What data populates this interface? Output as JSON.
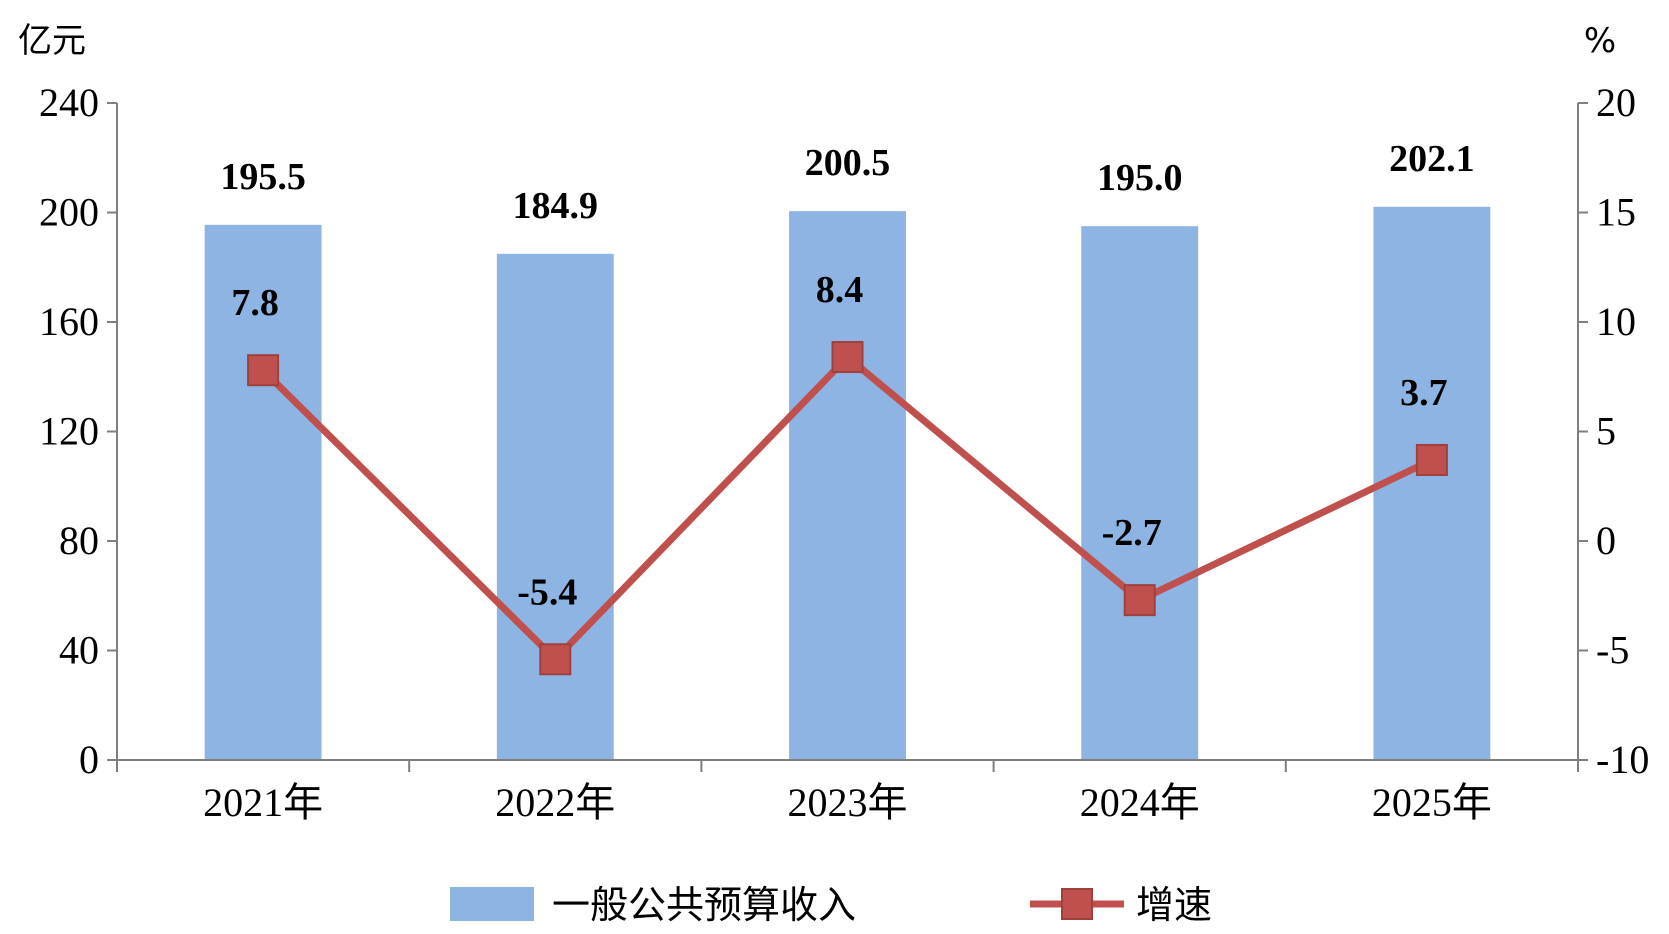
{
  "chart_data": {
    "type": "bar",
    "categories": [
      "2021年",
      "2022年",
      "2023年",
      "2024年",
      "2025年"
    ],
    "series": [
      {
        "name": "一般公共预算收入",
        "type": "bar",
        "axis": "left",
        "values": [
          195.5,
          184.9,
          200.5,
          195.0,
          202.1
        ],
        "labels": [
          "195.5",
          "184.9",
          "200.5",
          "195.0",
          "202.1"
        ],
        "color": "#8eb4e3"
      },
      {
        "name": "增速",
        "type": "line",
        "axis": "right",
        "values": [
          7.8,
          -5.4,
          8.4,
          -2.7,
          3.7
        ],
        "labels": [
          "7.8",
          "-5.4",
          "8.4",
          "-2.7",
          "3.7"
        ],
        "color": "#c0504d"
      }
    ],
    "y_left": {
      "unit": "亿元",
      "range": [
        0,
        240
      ],
      "ticks": [
        "0",
        "40",
        "80",
        "120",
        "160",
        "200",
        "240"
      ]
    },
    "y_right": {
      "unit": "%",
      "range": [
        -10,
        20
      ],
      "ticks": [
        "-10",
        "-5",
        "0",
        "5",
        "10",
        "15",
        "20"
      ]
    },
    "grid": false,
    "legend_position": "bottom"
  }
}
